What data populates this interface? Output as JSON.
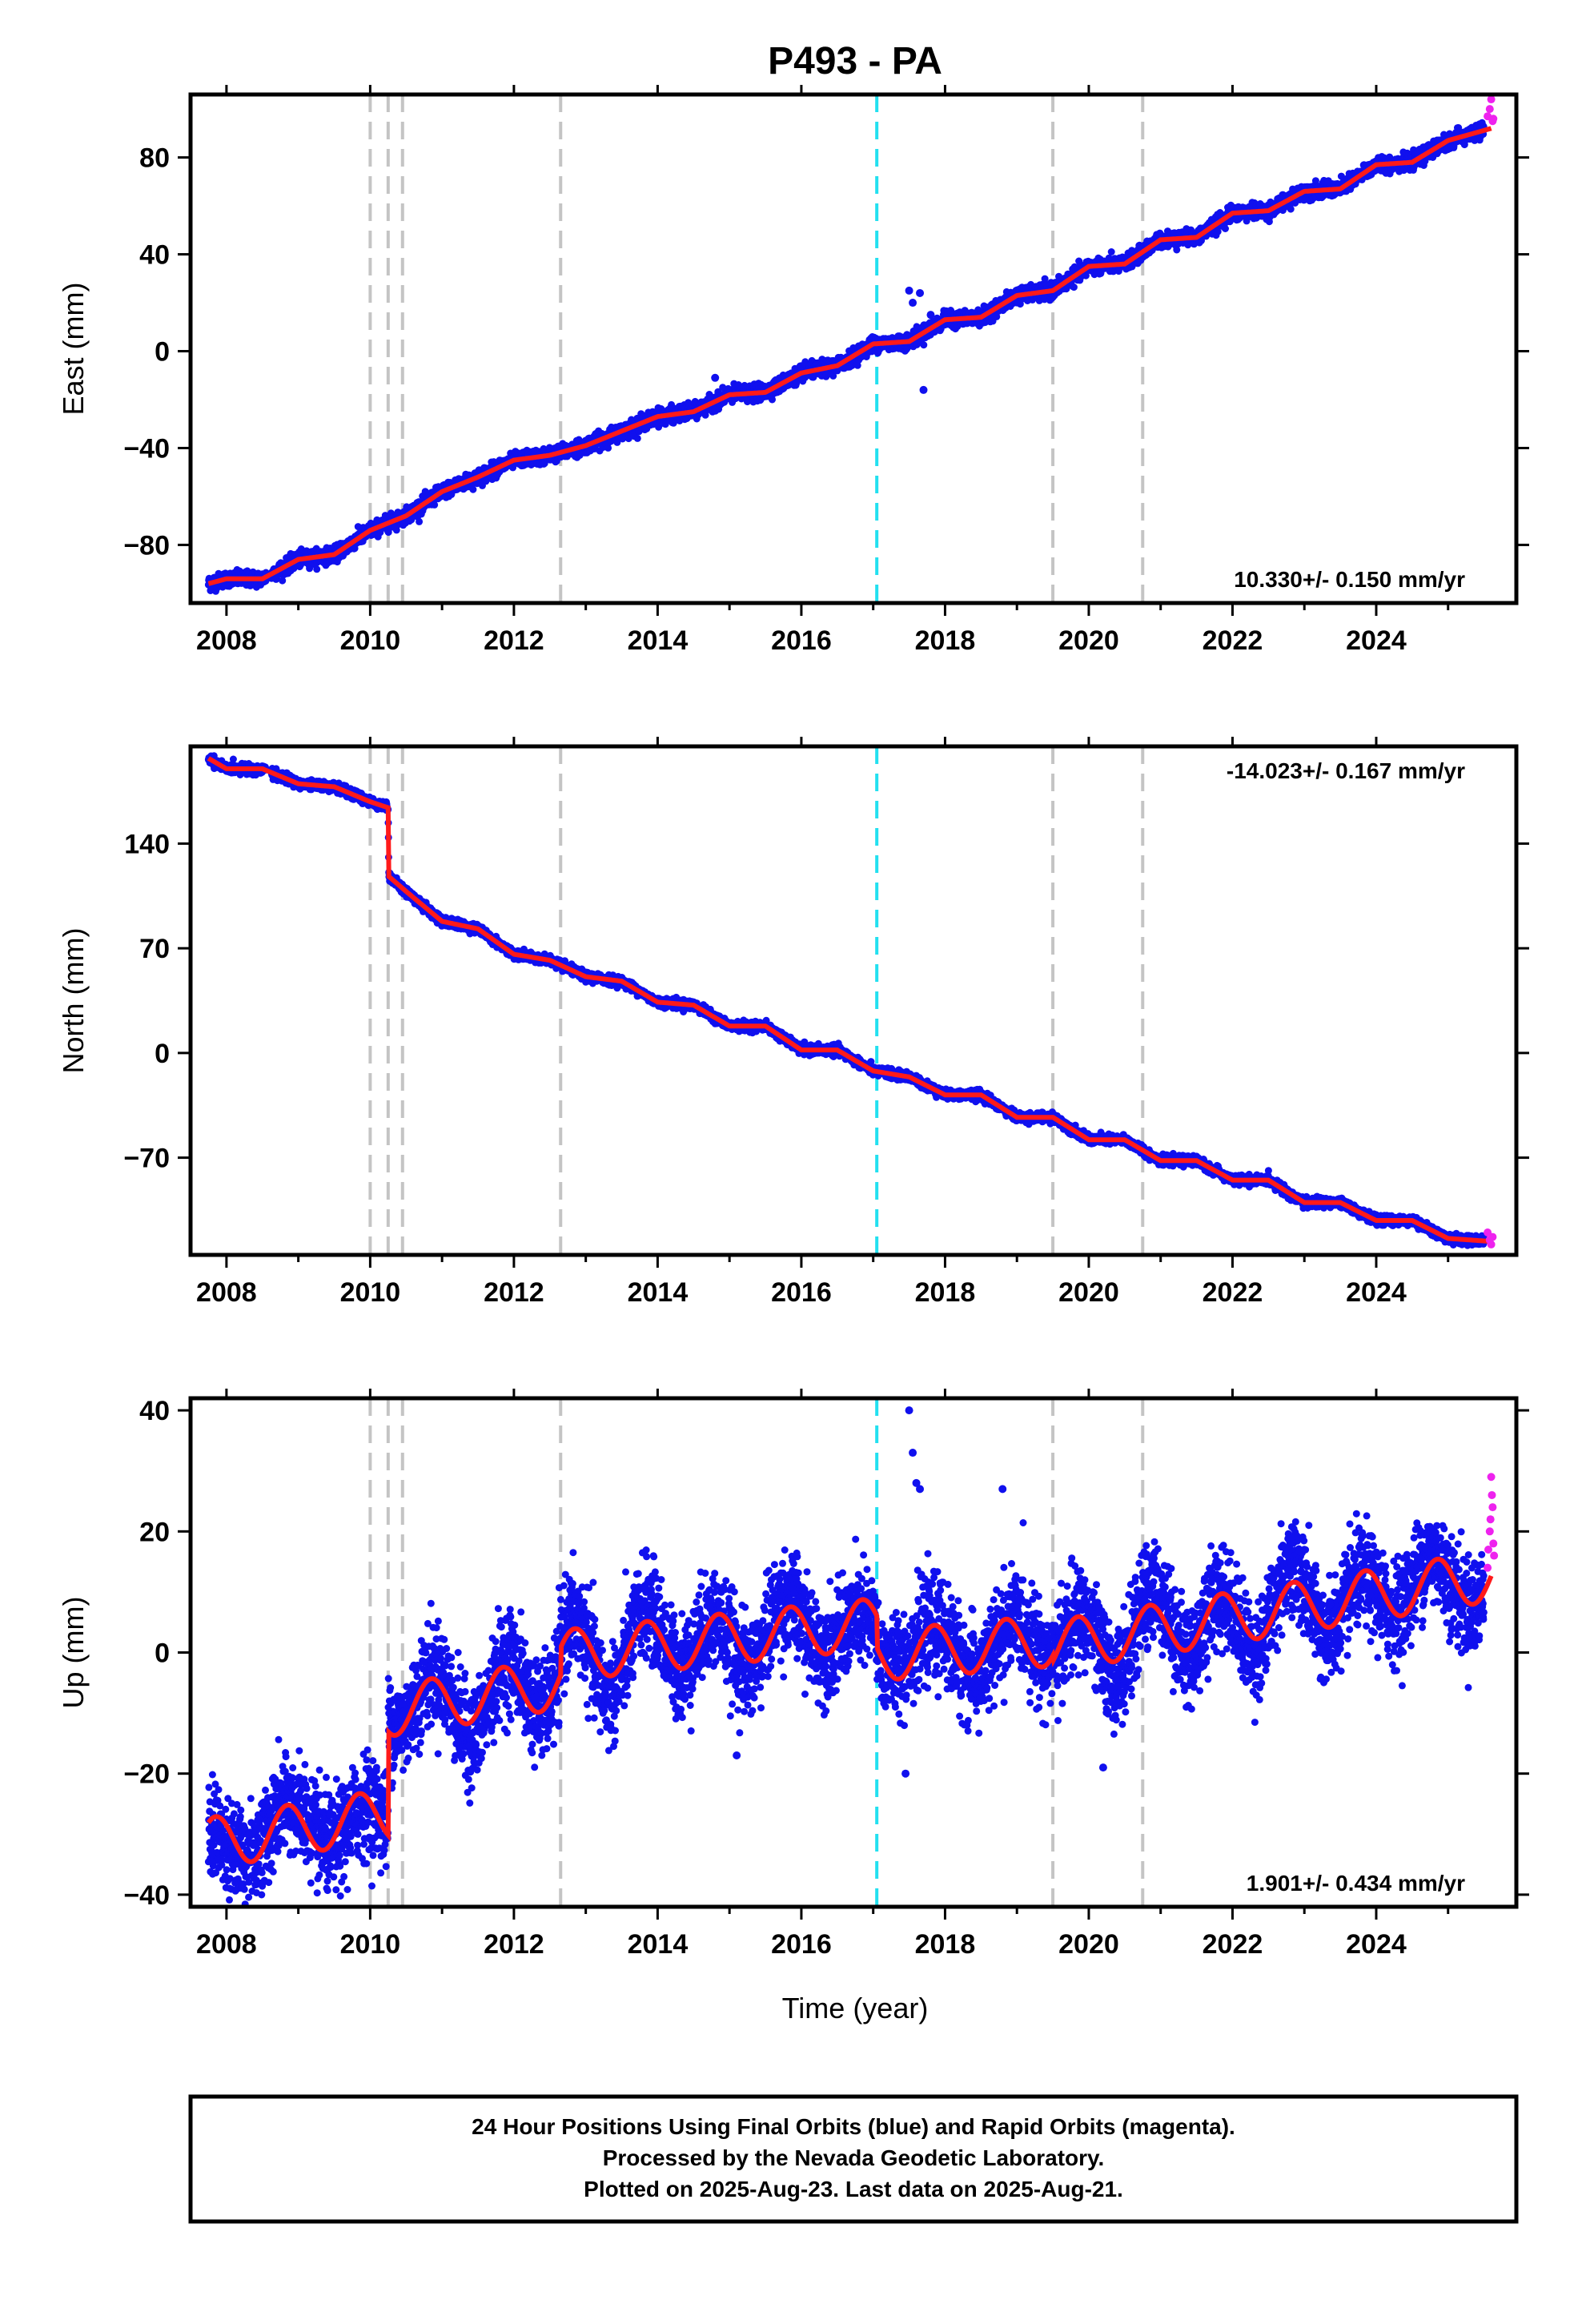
{
  "title": "P493 - PA",
  "colors": {
    "final": "#1010ee",
    "rapid": "#ee22ee",
    "model": "#ff1a1a",
    "event_gray": "#c4c4c4",
    "event_cyan": "#22e0f0",
    "frame": "#000000"
  },
  "chart_data": [
    {
      "type": "scatter",
      "name": "east",
      "ylabel": "East (mm)",
      "ylim": [
        -104,
        106
      ],
      "xlim": [
        2007.5,
        2025.95
      ],
      "x_ticks": [
        2008,
        2010,
        2012,
        2014,
        2016,
        2018,
        2020,
        2022,
        2024
      ],
      "y_ticks": [
        -80,
        -40,
        0,
        40,
        80
      ],
      "x_tick_labels": [
        "2008",
        "2010",
        "2012",
        "2014",
        "2016",
        "2018",
        "2020",
        "2022",
        "2024"
      ],
      "y_tick_labels": [
        "−80",
        "−40",
        "0",
        "40",
        "80"
      ],
      "rate_label": "10.330+/- 0.150 mm/yr",
      "events_gray": [
        2010.0,
        2010.25,
        2010.45,
        2012.65,
        2019.5,
        2020.75
      ],
      "events_cyan": [
        2017.05
      ],
      "model": {
        "x": [
          2007.75,
          2008.0,
          2008.5,
          2009.0,
          2009.5,
          2010.0,
          2010.5,
          2011.0,
          2011.5,
          2012.0,
          2012.5,
          2013.0,
          2013.5,
          2014.0,
          2014.5,
          2015.0,
          2015.5,
          2016.0,
          2016.5,
          2017.0,
          2017.5,
          2018.0,
          2018.5,
          2019.0,
          2019.5,
          2020.0,
          2020.5,
          2021.0,
          2021.5,
          2022.0,
          2022.5,
          2023.0,
          2023.5,
          2024.0,
          2024.5,
          2025.0,
          2025.6
        ],
        "y": [
          -96,
          -94,
          -94,
          -86,
          -84,
          -74,
          -68,
          -58,
          -52,
          -45,
          -43,
          -39,
          -33,
          -27,
          -25,
          -18,
          -17,
          -9,
          -6,
          3,
          4,
          13,
          14,
          23,
          25,
          35,
          36,
          46,
          47,
          57,
          58,
          66,
          67,
          77,
          78,
          87,
          92
        ]
      },
      "final_series": {
        "start": 2007.75,
        "end": 2025.5,
        "noise_mm": 1.5
      },
      "rapid_series": {
        "x": [
          2025.55,
          2025.58,
          2025.6,
          2025.62,
          2025.63
        ],
        "y": [
          97,
          100,
          104,
          95,
          96
        ]
      },
      "outliers": {
        "x": [
          2014.8,
          2017.5,
          2017.55,
          2017.65,
          2017.7,
          2017.8
        ],
        "y": [
          -11,
          25,
          20,
          24,
          -16,
          15
        ]
      }
    },
    {
      "type": "scatter",
      "name": "north",
      "ylabel": "North (mm)",
      "ylim": [
        -135,
        205
      ],
      "xlim": [
        2007.5,
        2025.95
      ],
      "x_ticks": [
        2008,
        2010,
        2012,
        2014,
        2016,
        2018,
        2020,
        2022,
        2024
      ],
      "y_ticks": [
        -70,
        0,
        70,
        140
      ],
      "x_tick_labels": [
        "2008",
        "2010",
        "2012",
        "2014",
        "2016",
        "2018",
        "2020",
        "2022",
        "2024"
      ],
      "y_tick_labels": [
        "−70",
        "0",
        "70",
        "140"
      ],
      "rate_label": "-14.023+/- 0.167 mm/yr",
      "events_gray": [
        2010.0,
        2010.25,
        2010.45,
        2012.65,
        2019.5,
        2020.75
      ],
      "events_cyan": [
        2017.05
      ],
      "model": {
        "x": [
          2007.75,
          2008.0,
          2008.5,
          2009.0,
          2009.5,
          2010.0,
          2010.25,
          2010.26,
          2010.5,
          2011.0,
          2011.5,
          2012.0,
          2012.5,
          2013.0,
          2013.5,
          2014.0,
          2014.5,
          2015.0,
          2015.5,
          2016.0,
          2016.5,
          2017.0,
          2017.5,
          2018.0,
          2018.5,
          2019.0,
          2019.5,
          2020.0,
          2020.5,
          2021.0,
          2021.5,
          2022.0,
          2022.5,
          2023.0,
          2023.5,
          2024.0,
          2024.5,
          2025.0,
          2025.6
        ],
        "y": [
          197,
          190,
          190,
          180,
          178,
          168,
          164,
          118,
          108,
          88,
          83,
          66,
          62,
          51,
          48,
          34,
          32,
          18,
          18,
          2,
          2,
          -12,
          -16,
          -28,
          -28,
          -43,
          -43,
          -58,
          -58,
          -72,
          -72,
          -85,
          -85,
          -100,
          -100,
          -112,
          -112,
          -124,
          -126
        ]
      },
      "final_series": {
        "start": 2007.75,
        "end": 2025.5,
        "noise_mm": 1.5
      },
      "rapid_series": {
        "x": [
          2025.55,
          2025.58,
          2025.6,
          2025.62
        ],
        "y": [
          -120,
          -125,
          -128,
          -123
        ]
      },
      "outliers": {
        "x": [],
        "y": []
      }
    },
    {
      "type": "scatter",
      "name": "up",
      "ylabel": "Up (mm)",
      "xlabel": "Time (year)",
      "ylim": [
        -42,
        42
      ],
      "xlim": [
        2007.5,
        2025.95
      ],
      "x_ticks": [
        2008,
        2010,
        2012,
        2014,
        2016,
        2018,
        2020,
        2022,
        2024
      ],
      "y_ticks": [
        -40,
        -20,
        0,
        20,
        40
      ],
      "x_tick_labels": [
        "2008",
        "2010",
        "2012",
        "2014",
        "2016",
        "2018",
        "2020",
        "2022",
        "2024"
      ],
      "y_tick_labels": [
        "−40",
        "−20",
        "0",
        "20",
        "40"
      ],
      "rate_label": "1.901+/- 0.434 mm/yr",
      "events_gray": [
        2010.0,
        2010.25,
        2010.45,
        2012.65,
        2019.5,
        2020.75
      ],
      "events_cyan": [
        2017.05
      ],
      "model_params": {
        "segments": [
          {
            "from": 2007.75,
            "to": 2010.25,
            "offset": -31.5,
            "trend": 1.9,
            "t0": 2007.75
          },
          {
            "from": 2010.25,
            "to": 2012.65,
            "offset": -9.0,
            "trend": 1.9,
            "t0": 2010.6
          },
          {
            "from": 2012.65,
            "to": 2017.05,
            "offset": -0.5,
            "trend": 1.2,
            "t0": 2012.65
          },
          {
            "from": 2017.05,
            "to": 2019.5,
            "offset": -0.5,
            "trend": 1.0,
            "t0": 2017.05
          },
          {
            "from": 2019.5,
            "to": 2025.6,
            "offset": 2.0,
            "trend": 1.9,
            "t0": 2020.0
          }
        ],
        "annual_amp": 4.2,
        "annual_phase_year": 0.6
      },
      "final_series": {
        "start": 2007.75,
        "end": 2025.5,
        "noise_mm": 4.0
      },
      "rapid_series": {
        "x": [
          2025.55,
          2025.56,
          2025.58,
          2025.59,
          2025.6,
          2025.61,
          2025.62,
          2025.63,
          2025.64
        ],
        "y": [
          14,
          17,
          20,
          22,
          29,
          26,
          24,
          18,
          16
        ]
      },
      "outliers": {
        "x": [
          2017.5,
          2017.6,
          2017.65,
          2017.55,
          2015.1,
          2018.8,
          2020.2,
          2017.45
        ],
        "y": [
          40,
          28,
          27,
          33,
          -17,
          27,
          -19,
          -20
        ]
      }
    }
  ],
  "footer": {
    "line1": "24 Hour Positions Using Final Orbits (blue) and Rapid Orbits (magenta).",
    "line2": "Processed by the Nevada Geodetic Laboratory.",
    "line3": "Plotted on 2025-Aug-23. Last data on 2025-Aug-21."
  }
}
